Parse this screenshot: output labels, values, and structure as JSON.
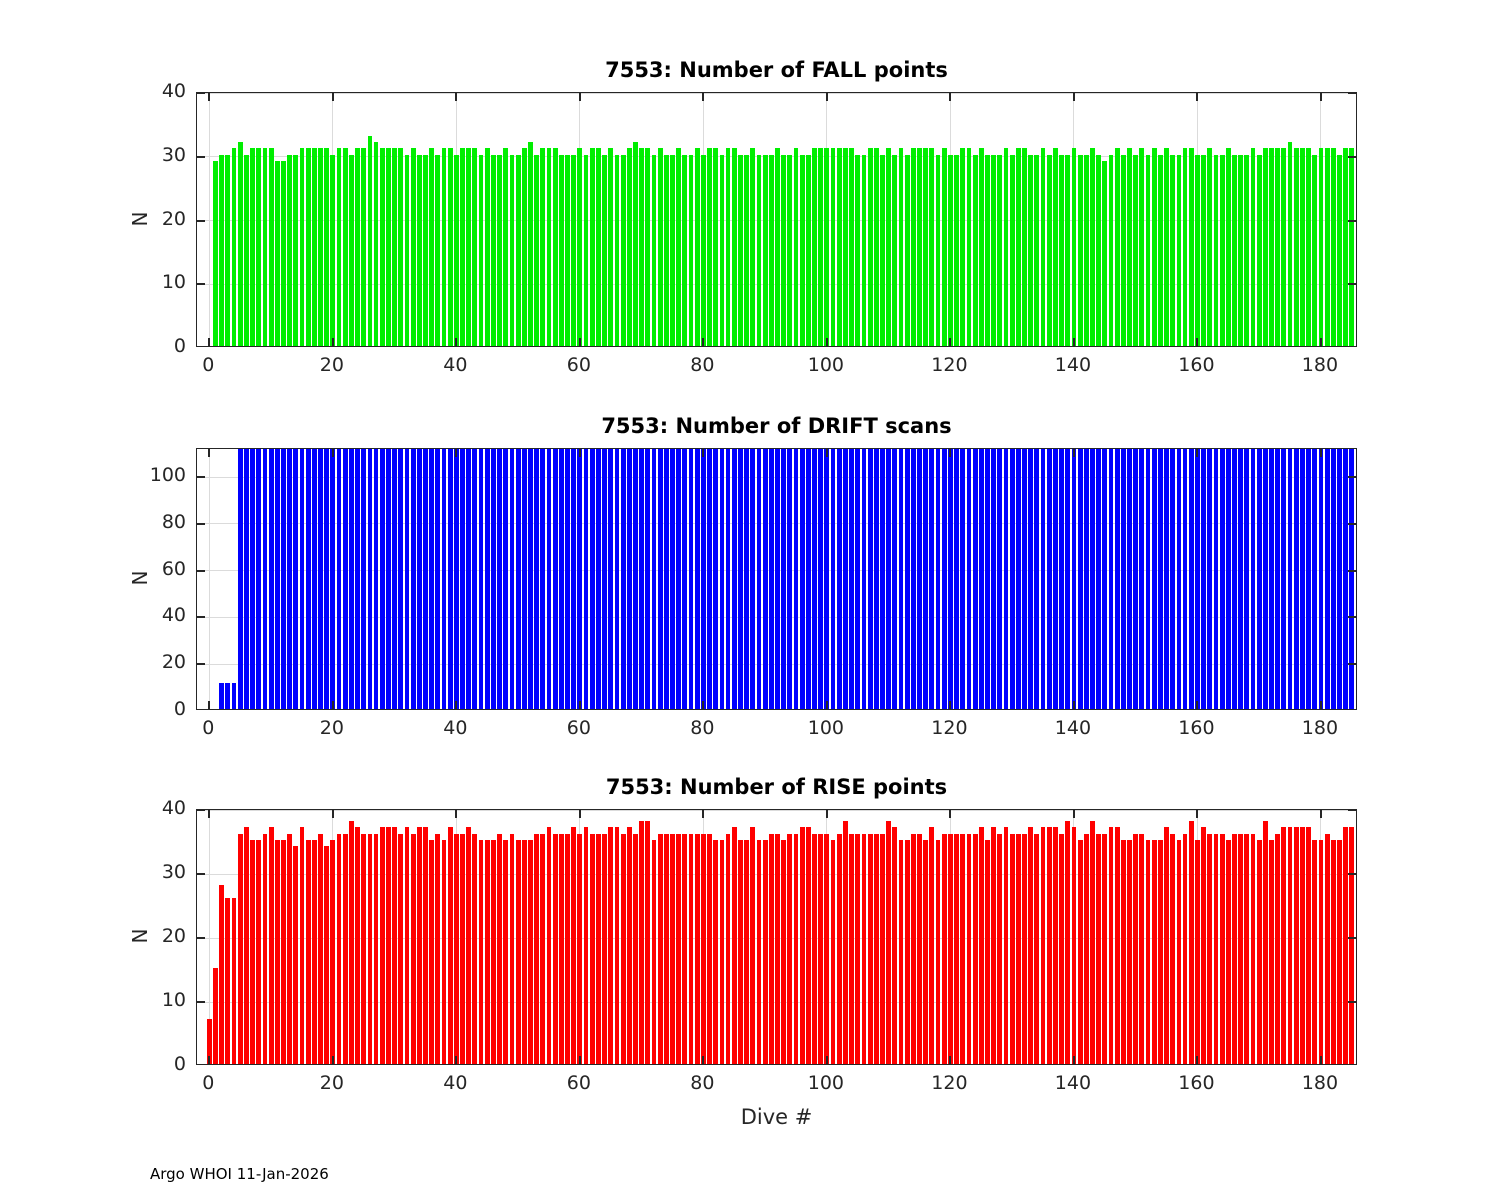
{
  "figure": {
    "footer": "Argo WHOI 11-Jan-2026",
    "background": "#ffffff",
    "axis_color": "#262626",
    "grid_color": "#dbdbdb"
  },
  "chart_data": [
    {
      "type": "bar",
      "title": "7553: Number of FALL points",
      "ylabel": "N",
      "xlabel": "",
      "color": "#00ee00",
      "xlim": [
        -2,
        186
      ],
      "ylim": [
        0,
        40
      ],
      "xticks": [
        0,
        20,
        40,
        60,
        80,
        100,
        120,
        140,
        160,
        180
      ],
      "yticks": [
        0,
        10,
        20,
        30,
        40
      ],
      "grid": true,
      "x_start_dive": 0,
      "values": [
        0,
        29,
        30,
        30,
        31,
        32,
        30,
        31,
        31,
        31,
        31,
        29,
        29,
        30,
        30,
        31,
        31,
        31,
        31,
        31,
        30,
        31,
        31,
        30,
        31,
        31,
        33,
        32,
        31,
        31,
        31,
        31,
        30,
        31,
        30,
        30,
        31,
        30,
        31,
        31,
        30,
        31,
        31,
        31,
        30,
        31,
        30,
        30,
        31,
        30,
        30,
        31,
        32,
        30,
        31,
        31,
        31,
        30,
        30,
        30,
        31,
        30,
        31,
        31,
        30,
        31,
        30,
        30,
        31,
        32,
        31,
        31,
        30,
        31,
        30,
        30,
        31,
        30,
        30,
        31,
        30,
        31,
        31,
        30,
        31,
        31,
        30,
        30,
        31,
        30,
        30,
        30,
        31,
        30,
        30,
        31,
        30,
        30,
        31,
        31,
        31,
        31,
        31,
        31,
        31,
        30,
        30,
        31,
        31,
        30,
        31,
        30,
        31,
        30,
        31,
        31,
        31,
        31,
        30,
        31,
        30,
        30,
        31,
        31,
        30,
        31,
        30,
        30,
        30,
        31,
        30,
        31,
        31,
        30,
        30,
        31,
        30,
        31,
        30,
        30,
        31,
        30,
        30,
        31,
        30,
        29,
        30,
        31,
        30,
        31,
        30,
        31,
        30,
        31,
        30,
        31,
        30,
        30,
        31,
        31,
        30,
        30,
        31,
        30,
        30,
        31,
        30,
        30,
        30,
        31,
        30,
        31,
        31,
        31,
        31,
        32,
        31,
        31,
        31,
        30,
        31,
        31,
        31,
        30,
        31,
        31
      ]
    },
    {
      "type": "bar",
      "title": "7553: Number of DRIFT scans",
      "ylabel": "N",
      "xlabel": "",
      "color": "#0000ff",
      "xlim": [
        -2,
        186
      ],
      "ylim": [
        0,
        112
      ],
      "xticks": [
        0,
        20,
        40,
        60,
        80,
        100,
        120,
        140,
        160,
        180
      ],
      "yticks": [
        0,
        20,
        40,
        60,
        80,
        100
      ],
      "grid": true,
      "x_start_dive": 0,
      "values": [
        0,
        0,
        11,
        11,
        11,
        112,
        112,
        112,
        112,
        112,
        112,
        112,
        112,
        112,
        112,
        112,
        112,
        112,
        112,
        112,
        112,
        112,
        112,
        112,
        112,
        112,
        112,
        112,
        112,
        112,
        112,
        112,
        112,
        112,
        112,
        112,
        112,
        112,
        112,
        112,
        112,
        112,
        112,
        112,
        112,
        112,
        112,
        112,
        112,
        112,
        112,
        112,
        112,
        112,
        112,
        112,
        112,
        112,
        112,
        112,
        112,
        112,
        112,
        112,
        112,
        112,
        112,
        112,
        112,
        112,
        112,
        112,
        112,
        112,
        112,
        112,
        112,
        112,
        112,
        112,
        112,
        112,
        112,
        112,
        112,
        112,
        112,
        112,
        112,
        112,
        112,
        112,
        112,
        112,
        112,
        112,
        112,
        112,
        112,
        112,
        112,
        112,
        112,
        112,
        112,
        112,
        112,
        112,
        112,
        112,
        112,
        112,
        112,
        112,
        112,
        112,
        112,
        112,
        112,
        112,
        112,
        112,
        112,
        112,
        112,
        112,
        112,
        112,
        112,
        112,
        112,
        112,
        112,
        112,
        112,
        112,
        112,
        112,
        112,
        112,
        112,
        112,
        112,
        112,
        112,
        112,
        112,
        112,
        112,
        112,
        112,
        112,
        112,
        112,
        112,
        112,
        112,
        112,
        112,
        112,
        112,
        112,
        112,
        112,
        112,
        112,
        112,
        112,
        112,
        112,
        112,
        112,
        112,
        112,
        112,
        112,
        112,
        112,
        112,
        112,
        112,
        112,
        112,
        112,
        112,
        112
      ]
    },
    {
      "type": "bar",
      "title": "7553: Number of RISE points",
      "ylabel": "N",
      "xlabel": "Dive #",
      "color": "#ff0000",
      "xlim": [
        -2,
        186
      ],
      "ylim": [
        0,
        40
      ],
      "xticks": [
        0,
        20,
        40,
        60,
        80,
        100,
        120,
        140,
        160,
        180
      ],
      "yticks": [
        0,
        10,
        20,
        30,
        40
      ],
      "grid": true,
      "x_start_dive": 0,
      "values": [
        7,
        15,
        28,
        26,
        26,
        36,
        37,
        35,
        35,
        36,
        37,
        35,
        35,
        36,
        34,
        37,
        35,
        35,
        36,
        34,
        35,
        36,
        36,
        38,
        37,
        36,
        36,
        36,
        37,
        37,
        37,
        36,
        37,
        36,
        37,
        37,
        35,
        36,
        35,
        37,
        36,
        36,
        37,
        36,
        35,
        35,
        35,
        36,
        35,
        36,
        35,
        35,
        35,
        36,
        36,
        37,
        36,
        36,
        36,
        37,
        36,
        37,
        36,
        36,
        36,
        37,
        37,
        36,
        37,
        36,
        38,
        38,
        35,
        36,
        36,
        36,
        36,
        36,
        36,
        36,
        36,
        36,
        35,
        35,
        36,
        37,
        35,
        35,
        37,
        35,
        35,
        36,
        36,
        35,
        36,
        36,
        37,
        37,
        36,
        36,
        36,
        35,
        36,
        38,
        36,
        36,
        36,
        36,
        36,
        36,
        38,
        37,
        35,
        35,
        36,
        36,
        35,
        37,
        35,
        36,
        36,
        36,
        36,
        36,
        36,
        37,
        35,
        37,
        36,
        37,
        36,
        36,
        36,
        37,
        36,
        37,
        37,
        37,
        36,
        38,
        37,
        35,
        36,
        38,
        36,
        36,
        37,
        37,
        35,
        35,
        36,
        36,
        35,
        35,
        35,
        37,
        36,
        35,
        36,
        38,
        35,
        37,
        36,
        36,
        36,
        35,
        36,
        36,
        36,
        36,
        35,
        38,
        35,
        36,
        37,
        37,
        37,
        37,
        37,
        35,
        35,
        36,
        35,
        35,
        37,
        37
      ]
    }
  ]
}
